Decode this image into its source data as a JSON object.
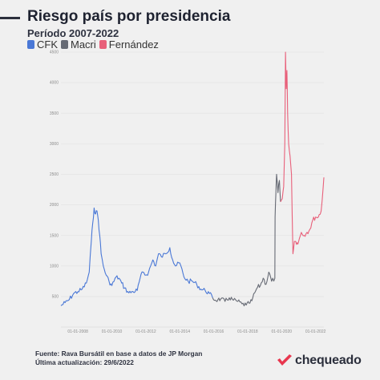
{
  "header": {
    "title": "Riesgo país por presidencia",
    "subtitle": "Período 2007-2022"
  },
  "legend": [
    {
      "label": "CFK",
      "color": "#4a78d6"
    },
    {
      "label": "Macri",
      "color": "#666a74"
    },
    {
      "label": "Fernández",
      "color": "#e8607a"
    }
  ],
  "footer": {
    "source": "Fuente: Rava Bursátil en base a datos de JP Morgan",
    "updated": "Última actualización: 29/6/2022",
    "logo_text": "chequeado"
  },
  "chart_data": {
    "type": "line",
    "title": "Riesgo país por presidencia",
    "subtitle": "Período 2007-2022",
    "ylim": [
      0,
      4500
    ],
    "yticks": [
      500,
      1000,
      1500,
      2000,
      2500,
      3000,
      3500,
      4000,
      4500
    ],
    "xticks": [
      "01-01-2008",
      "01-01-2010",
      "01-01-2012",
      "01-01-2014",
      "01-01-2016",
      "01-01-2018",
      "01-01-2020",
      "01-01-2022"
    ],
    "xrange": [
      "2007-01-01",
      "2022-06-29"
    ],
    "grid": true,
    "legend_position": "top-left",
    "series": [
      {
        "name": "CFK",
        "color": "#4a78d6",
        "points": [
          [
            "2007-01-01",
            350
          ],
          [
            "2007-04-01",
            400
          ],
          [
            "2007-07-01",
            450
          ],
          [
            "2007-10-01",
            550
          ],
          [
            "2008-01-01",
            580
          ],
          [
            "2008-04-01",
            620
          ],
          [
            "2008-07-01",
            720
          ],
          [
            "2008-09-01",
            900
          ],
          [
            "2008-10-15",
            1400
          ],
          [
            "2008-11-15",
            1700
          ],
          [
            "2008-12-15",
            1950
          ],
          [
            "2009-01-15",
            1850
          ],
          [
            "2009-02-15",
            1900
          ],
          [
            "2009-03-15",
            1750
          ],
          [
            "2009-04-15",
            1500
          ],
          [
            "2009-05-15",
            1200
          ],
          [
            "2009-07-01",
            1000
          ],
          [
            "2009-09-01",
            850
          ],
          [
            "2009-11-01",
            750
          ],
          [
            "2010-01-01",
            680
          ],
          [
            "2010-04-01",
            820
          ],
          [
            "2010-06-01",
            800
          ],
          [
            "2010-08-01",
            720
          ],
          [
            "2010-10-01",
            640
          ],
          [
            "2011-01-01",
            560
          ],
          [
            "2011-04-01",
            580
          ],
          [
            "2011-07-01",
            600
          ],
          [
            "2011-09-01",
            800
          ],
          [
            "2011-11-01",
            900
          ],
          [
            "2012-01-01",
            850
          ],
          [
            "2012-03-01",
            900
          ],
          [
            "2012-06-01",
            1100
          ],
          [
            "2012-08-01",
            1000
          ],
          [
            "2012-10-01",
            1200
          ],
          [
            "2012-12-01",
            1150
          ],
          [
            "2013-03-01",
            1200
          ],
          [
            "2013-06-01",
            1300
          ],
          [
            "2013-08-01",
            1100
          ],
          [
            "2013-10-01",
            1000
          ],
          [
            "2014-01-01",
            1050
          ],
          [
            "2014-04-01",
            820
          ],
          [
            "2014-07-01",
            750
          ],
          [
            "2014-10-01",
            750
          ],
          [
            "2015-01-01",
            700
          ],
          [
            "2015-04-01",
            620
          ],
          [
            "2015-07-01",
            600
          ],
          [
            "2015-10-01",
            550
          ],
          [
            "2015-12-09",
            480
          ]
        ]
      },
      {
        "name": "Macri",
        "color": "#666a74",
        "points": [
          [
            "2015-12-10",
            480
          ],
          [
            "2016-02-01",
            440
          ],
          [
            "2016-04-01",
            450
          ],
          [
            "2016-06-01",
            460
          ],
          [
            "2016-09-01",
            420
          ],
          [
            "2016-12-01",
            480
          ],
          [
            "2017-03-01",
            440
          ],
          [
            "2017-06-01",
            420
          ],
          [
            "2017-09-01",
            380
          ],
          [
            "2017-12-01",
            360
          ],
          [
            "2018-02-01",
            390
          ],
          [
            "2018-04-01",
            430
          ],
          [
            "2018-06-01",
            560
          ],
          [
            "2018-08-01",
            650
          ],
          [
            "2018-10-01",
            680
          ],
          [
            "2018-12-01",
            800
          ],
          [
            "2019-02-01",
            700
          ],
          [
            "2019-04-01",
            900
          ],
          [
            "2019-06-01",
            750
          ],
          [
            "2019-08-09",
            800
          ],
          [
            "2019-08-14",
            1800
          ],
          [
            "2019-09-01",
            2200
          ],
          [
            "2019-09-15",
            2500
          ],
          [
            "2019-10-15",
            2200
          ],
          [
            "2019-11-15",
            2400
          ],
          [
            "2019-12-09",
            2050
          ]
        ]
      },
      {
        "name": "Fernández",
        "color": "#e8607a",
        "points": [
          [
            "2019-12-10",
            2050
          ],
          [
            "2020-01-15",
            2100
          ],
          [
            "2020-02-15",
            2300
          ],
          [
            "2020-03-10",
            3000
          ],
          [
            "2020-03-25",
            4500
          ],
          [
            "2020-04-10",
            3900
          ],
          [
            "2020-04-25",
            4200
          ],
          [
            "2020-05-10",
            3500
          ],
          [
            "2020-06-01",
            3000
          ],
          [
            "2020-07-01",
            2800
          ],
          [
            "2020-08-01",
            2500
          ],
          [
            "2020-09-01",
            1200
          ],
          [
            "2020-10-01",
            1400
          ],
          [
            "2020-11-01",
            1400
          ],
          [
            "2020-12-01",
            1380
          ],
          [
            "2021-01-01",
            1400
          ],
          [
            "2021-03-01",
            1550
          ],
          [
            "2021-05-01",
            1500
          ],
          [
            "2021-07-01",
            1550
          ],
          [
            "2021-09-01",
            1600
          ],
          [
            "2021-11-01",
            1750
          ],
          [
            "2022-01-01",
            1800
          ],
          [
            "2022-03-01",
            1800
          ],
          [
            "2022-05-01",
            1900
          ],
          [
            "2022-06-15",
            2300
          ],
          [
            "2022-06-29",
            2450
          ]
        ]
      }
    ]
  }
}
